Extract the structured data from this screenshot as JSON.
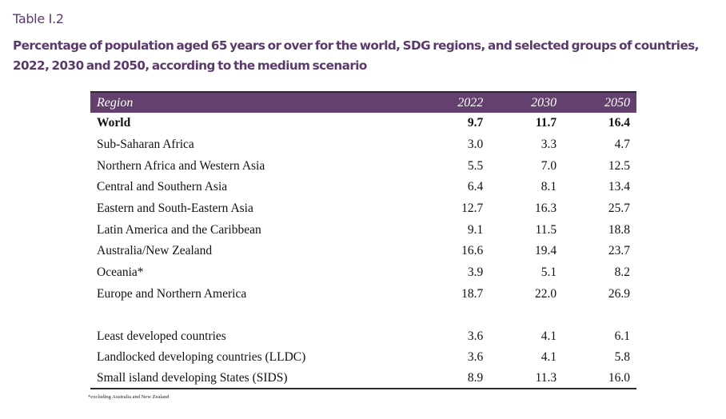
{
  "document": {
    "label": "Table I.2",
    "title": "Percentage of population aged 65 years or over for the world, SDG regions, and selected groups of countries, 2022, 2030 and 2050, according to the medium scenario",
    "accent_color": "#63406e",
    "title_color": "#5b3a6b"
  },
  "table": {
    "headers": [
      "Region",
      "2022",
      "2030",
      "2050"
    ],
    "rows": [
      {
        "region": "World",
        "v2022": "9.7",
        "v2030": "11.7",
        "v2050": "16.4",
        "bold": true
      },
      {
        "region": "Sub-Saharan Africa",
        "v2022": "3.0",
        "v2030": "3.3",
        "v2050": "4.7"
      },
      {
        "region": "Northern Africa and Western Asia",
        "v2022": "5.5",
        "v2030": "7.0",
        "v2050": "12.5"
      },
      {
        "region": "Central and Southern Asia",
        "v2022": "6.4",
        "v2030": "8.1",
        "v2050": "13.4"
      },
      {
        "region": "Eastern and South-Eastern Asia",
        "v2022": "12.7",
        "v2030": "16.3",
        "v2050": "25.7"
      },
      {
        "region": "Latin America and the Caribbean",
        "v2022": "9.1",
        "v2030": "11.5",
        "v2050": "18.8"
      },
      {
        "region": "Australia/New Zealand",
        "v2022": "16.6",
        "v2030": "19.4",
        "v2050": "23.7"
      },
      {
        "region": "Oceania*",
        "v2022": "3.9",
        "v2030": "5.1",
        "v2050": "8.2"
      },
      {
        "region": "Europe and Northern America",
        "v2022": "18.7",
        "v2030": "22.0",
        "v2050": "26.9"
      },
      {
        "region": "Least developed countries",
        "v2022": "3.6",
        "v2030": "4.1",
        "v2050": "6.1"
      },
      {
        "region": "Landlocked developing countries (LLDC)",
        "v2022": "3.6",
        "v2030": "4.1",
        "v2050": "5.8"
      },
      {
        "region": "Small island developing States (SIDS)",
        "v2022": "8.9",
        "v2030": "11.3",
        "v2050": "16.0"
      }
    ]
  },
  "footnote": "*excluding Australia and New Zealand"
}
